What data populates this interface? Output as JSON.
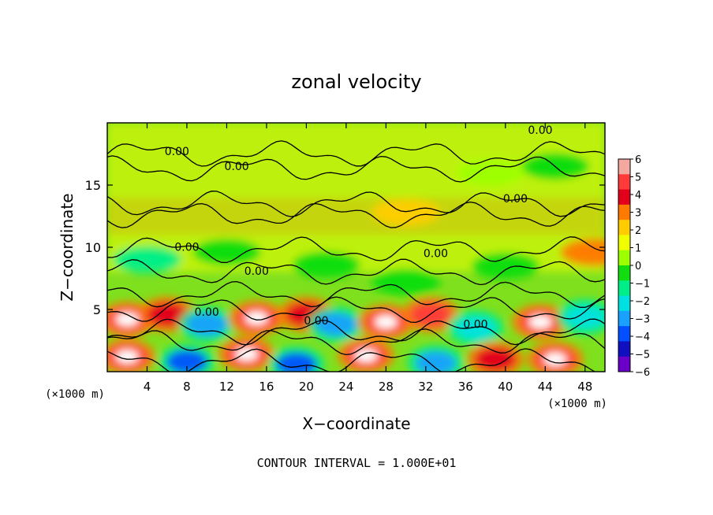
{
  "chart_data": {
    "type": "heatmap",
    "title": "zonal velocity",
    "xlabel": "X−coordinate",
    "ylabel": "Z−coordinate",
    "x_unit_label": "(×1000 m)",
    "z_unit_label": "(×1000 m)",
    "xlim": [
      0,
      50
    ],
    "zlim": [
      0,
      20
    ],
    "x_ticks": [
      4,
      8,
      12,
      16,
      20,
      24,
      28,
      32,
      36,
      40,
      44,
      48
    ],
    "z_ticks": [
      5,
      10,
      15
    ],
    "colorbar_ticks": [
      6,
      5,
      4,
      3,
      2,
      1,
      0,
      -1,
      -2,
      -3,
      -4,
      -5,
      -6
    ],
    "colorbar_colors": [
      "#f4a9a0",
      "#ff3a3a",
      "#e3001b",
      "#ff7a00",
      "#ffcc00",
      "#f0ff00",
      "#9dff00",
      "#11dd11",
      "#00ee88",
      "#00e0e0",
      "#1aa0ff",
      "#0050ff",
      "#1010c0",
      "#6a00c8"
    ],
    "contour_label": "0.00",
    "contour_interval_text": "CONTOUR INTERVAL = 1.000E+01",
    "field_sketch": {
      "description_units": "x in 1000 m, z in 1000 m, value in colorbar units",
      "background_upper": 0.8,
      "features": [
        {
          "x": 2,
          "z": 4.2,
          "value": 6
        },
        {
          "x": 6,
          "z": 4.6,
          "value": 4
        },
        {
          "x": 10,
          "z": 3.8,
          "value": -4
        },
        {
          "x": 15,
          "z": 4.3,
          "value": 6
        },
        {
          "x": 20,
          "z": 4.6,
          "value": 4
        },
        {
          "x": 23,
          "z": 3.8,
          "value": -4
        },
        {
          "x": 28,
          "z": 4.0,
          "value": 6
        },
        {
          "x": 32.5,
          "z": 4.6,
          "value": 5
        },
        {
          "x": 37,
          "z": 3.5,
          "value": -3
        },
        {
          "x": 43.5,
          "z": 4.0,
          "value": 6
        },
        {
          "x": 48,
          "z": 4.4,
          "value": -3
        },
        {
          "x": 2,
          "z": 1.2,
          "value": 6
        },
        {
          "x": 8,
          "z": 0.8,
          "value": -5
        },
        {
          "x": 14,
          "z": 1.4,
          "value": 6
        },
        {
          "x": 19,
          "z": 0.6,
          "value": -5
        },
        {
          "x": 26,
          "z": 1.3,
          "value": 6
        },
        {
          "x": 33,
          "z": 0.7,
          "value": -4
        },
        {
          "x": 39,
          "z": 1.0,
          "value": 4
        },
        {
          "x": 45,
          "z": 1.0,
          "value": 6
        },
        {
          "x": 4,
          "z": 9.0,
          "value": -2
        },
        {
          "x": 12,
          "z": 9.6,
          "value": -1.5
        },
        {
          "x": 22,
          "z": 8.6,
          "value": -1.5
        },
        {
          "x": 30,
          "z": 7.2,
          "value": -1.5
        },
        {
          "x": 40,
          "z": 8.5,
          "value": -1
        },
        {
          "x": 45,
          "z": 16.5,
          "value": -1
        },
        {
          "x": 38.5,
          "z": 16.0,
          "value": -0.5
        },
        {
          "x": 30,
          "z": 12.8,
          "value": 1.5
        },
        {
          "x": 49,
          "z": 9.6,
          "value": 3
        }
      ]
    },
    "contour_labels": [
      {
        "x": 7,
        "z": 17.4,
        "text": "0.00"
      },
      {
        "x": 13,
        "z": 16.2,
        "text": "0.00"
      },
      {
        "x": 43.5,
        "z": 19.1,
        "text": "0.00"
      },
      {
        "x": 41,
        "z": 13.6,
        "text": "0.00"
      },
      {
        "x": 8,
        "z": 9.7,
        "text": "0.00"
      },
      {
        "x": 15,
        "z": 7.8,
        "text": "0.00"
      },
      {
        "x": 33,
        "z": 9.2,
        "text": "0.00"
      },
      {
        "x": 10,
        "z": 4.5,
        "text": "0.00"
      },
      {
        "x": 21,
        "z": 3.8,
        "text": "0.00"
      },
      {
        "x": 37,
        "z": 3.5,
        "text": "0.00"
      }
    ]
  }
}
